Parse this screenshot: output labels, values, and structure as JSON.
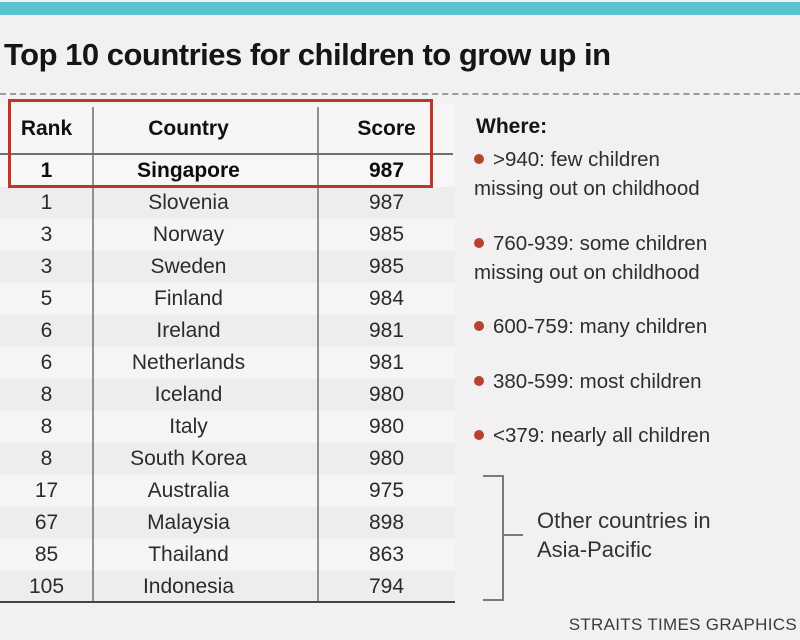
{
  "colors": {
    "teal_bar": "#5ac3cf",
    "highlight_box": "#b23a2e",
    "bullet": "#b5432f"
  },
  "title": "Top 10 countries for children to grow up in",
  "table": {
    "columns": [
      "Rank",
      "Country",
      "Score"
    ],
    "highlight_row": {
      "rank": "1",
      "country": "Singapore",
      "score": "987"
    },
    "rows": [
      {
        "rank": "1",
        "country": "Slovenia",
        "score": "987"
      },
      {
        "rank": "3",
        "country": "Norway",
        "score": "985"
      },
      {
        "rank": "3",
        "country": "Sweden",
        "score": "985"
      },
      {
        "rank": "5",
        "country": "Finland",
        "score": "984"
      },
      {
        "rank": "6",
        "country": "Ireland",
        "score": "981"
      },
      {
        "rank": "6",
        "country": "Netherlands",
        "score": "981"
      },
      {
        "rank": "8",
        "country": "Iceland",
        "score": "980"
      },
      {
        "rank": "8",
        "country": "Italy",
        "score": "980"
      },
      {
        "rank": "8",
        "country": "South Korea",
        "score": "980"
      },
      {
        "rank": "17",
        "country": "Australia",
        "score": "975"
      },
      {
        "rank": "67",
        "country": "Malaysia",
        "score": "898"
      },
      {
        "rank": "85",
        "country": "Thailand",
        "score": "863"
      },
      {
        "rank": "105",
        "country": "Indonesia",
        "score": "794"
      }
    ]
  },
  "legend": {
    "heading": "Where:",
    "items": [
      ">940: few children missing out on childhood",
      "760-939: some children missing out on childhood",
      "600-759: many children",
      "380-599: most children",
      "<379: nearly all children"
    ]
  },
  "bracket_label": "Other countries in Asia-Pacific",
  "footer": "STRAITS TIMES GRAPHICS",
  "chart_data": {
    "type": "table",
    "title": "Top 10 countries for children to grow up in",
    "columns": [
      "Rank",
      "Country",
      "Score"
    ],
    "rows": [
      [
        1,
        "Singapore",
        987
      ],
      [
        1,
        "Slovenia",
        987
      ],
      [
        3,
        "Norway",
        985
      ],
      [
        3,
        "Sweden",
        985
      ],
      [
        5,
        "Finland",
        984
      ],
      [
        6,
        "Ireland",
        981
      ],
      [
        6,
        "Netherlands",
        981
      ],
      [
        8,
        "Iceland",
        980
      ],
      [
        8,
        "Italy",
        980
      ],
      [
        8,
        "South Korea",
        980
      ],
      [
        17,
        "Australia",
        975
      ],
      [
        67,
        "Malaysia",
        898
      ],
      [
        85,
        "Thailand",
        863
      ],
      [
        105,
        "Indonesia",
        794
      ]
    ],
    "highlighted_row": [
      1,
      "Singapore",
      987
    ],
    "score_bands": [
      {
        "range": ">940",
        "meaning": "few children missing out on childhood"
      },
      {
        "range": "760-939",
        "meaning": "some children missing out on childhood"
      },
      {
        "range": "600-759",
        "meaning": "many children"
      },
      {
        "range": "380-599",
        "meaning": "most children"
      },
      {
        "range": "<379",
        "meaning": "nearly all children"
      }
    ],
    "grouped_rows_label": "Other countries in Asia-Pacific",
    "grouped_rows": [
      "Australia",
      "Malaysia",
      "Thailand",
      "Indonesia"
    ],
    "credit": "STRAITS TIMES GRAPHICS"
  }
}
